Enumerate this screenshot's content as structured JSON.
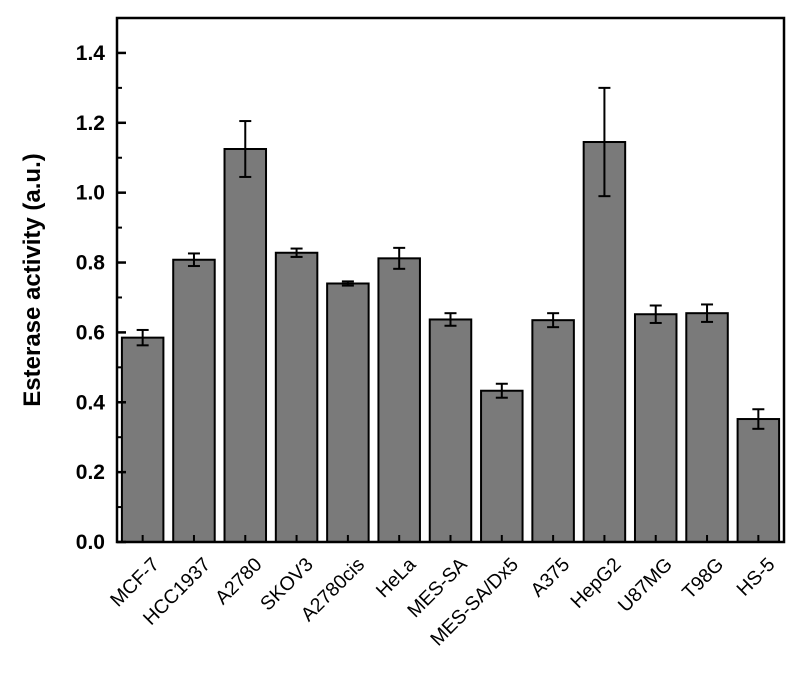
{
  "chart_data": {
    "type": "bar",
    "title": "",
    "xlabel": "",
    "ylabel": "Esterase activity (a.u.)",
    "ylim": [
      0.0,
      1.5
    ],
    "yticks": [
      "0.0",
      "0.2",
      "0.4",
      "0.6",
      "0.8",
      "1.0",
      "1.2",
      "1.4"
    ],
    "grid": false,
    "bar_color": "#7a7a7a",
    "categories": [
      "MCF-7",
      "HCC1937",
      "A2780",
      "SKOV3",
      "A2780cis",
      "HeLa",
      "MES-SA",
      "MES-SA/Dx5",
      "A375",
      "HepG2",
      "U87MG",
      "T98G",
      "HS-5"
    ],
    "values": [
      0.585,
      0.808,
      1.125,
      0.828,
      0.74,
      0.812,
      0.637,
      0.433,
      0.635,
      1.145,
      0.652,
      0.655,
      0.352
    ],
    "errors": [
      0.022,
      0.018,
      0.08,
      0.012,
      0.006,
      0.03,
      0.018,
      0.02,
      0.02,
      0.155,
      0.025,
      0.025,
      0.028
    ]
  }
}
